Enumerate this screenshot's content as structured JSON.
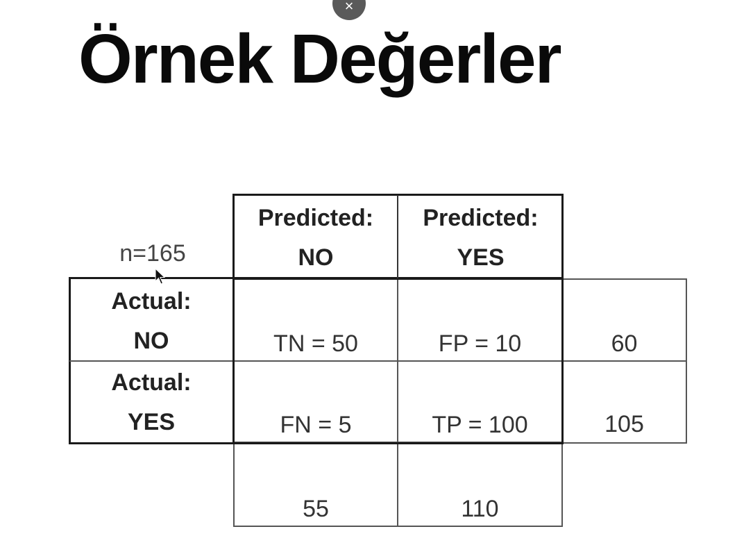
{
  "title": "Örnek Değerler",
  "close_icon": "×",
  "matrix": {
    "n_label": "n=165",
    "predicted_no": {
      "line1": "Predicted:",
      "line2": "NO"
    },
    "predicted_yes": {
      "line1": "Predicted:",
      "line2": "YES"
    },
    "actual_no": {
      "line1": "Actual:",
      "line2": "NO"
    },
    "actual_yes": {
      "line1": "Actual:",
      "line2": "YES"
    },
    "tn": "TN = 50",
    "fp": "FP = 10",
    "fn": "FN = 5",
    "tp": "TP = 100",
    "row_total_no": "60",
    "row_total_yes": "105",
    "col_total_no": "55",
    "col_total_yes": "110"
  },
  "icons": {
    "cursor": "mouse-pointer-icon",
    "close": "close-icon"
  }
}
